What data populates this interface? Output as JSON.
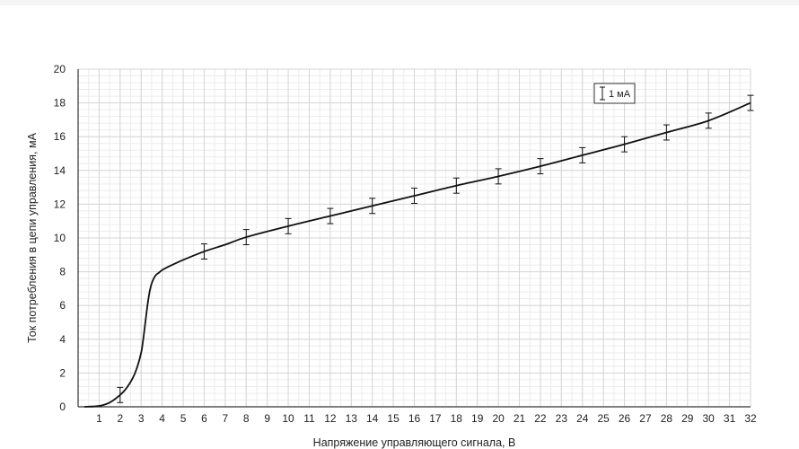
{
  "chart_data": {
    "type": "line",
    "title": "",
    "xlabel": "Напряжение управляющего сигнала, В",
    "ylabel": "Ток потребления в цепи управления, мА",
    "xlim": [
      0,
      32
    ],
    "ylim": [
      0,
      20
    ],
    "x_ticks": [
      "1",
      "2",
      "3",
      "4",
      "5",
      "6",
      "7",
      "8",
      "9",
      "10",
      "11",
      "12",
      "13",
      "14",
      "15",
      "16",
      "17",
      "18",
      "19",
      "20",
      "21",
      "22",
      "23",
      "24",
      "25",
      "26",
      "27",
      "28",
      "29",
      "30",
      "31",
      "32"
    ],
    "y_ticks": [
      "0",
      "2",
      "4",
      "6",
      "8",
      "10",
      "12",
      "14",
      "16",
      "18",
      "20"
    ],
    "grid": true,
    "series": [
      {
        "color": "#111111",
        "x": [
          0.3,
          1,
          1.5,
          2,
          2.3,
          2.6,
          2.8,
          3.0,
          3.1,
          3.2,
          3.3,
          3.4,
          3.5,
          3.6,
          3.7,
          3.8,
          3.9,
          4.0,
          4.3,
          5,
          6,
          7,
          8,
          10,
          12,
          14,
          16,
          18,
          20,
          22,
          24,
          26,
          28,
          30,
          32
        ],
        "y": [
          0,
          0.05,
          0.25,
          0.7,
          1.1,
          1.7,
          2.3,
          3.2,
          4.0,
          5.0,
          6.0,
          6.8,
          7.3,
          7.6,
          7.8,
          7.9,
          8.0,
          8.1,
          8.3,
          8.7,
          9.2,
          9.6,
          10.05,
          10.7,
          11.3,
          11.9,
          12.5,
          13.1,
          13.65,
          14.25,
          14.9,
          15.55,
          16.25,
          16.95,
          18.0
        ]
      }
    ],
    "error_bars": {
      "x": [
        2,
        6,
        8,
        10,
        12,
        14,
        16,
        18,
        20,
        22,
        24,
        26,
        28,
        30,
        32
      ],
      "y": [
        0.7,
        9.2,
        10.05,
        10.7,
        11.3,
        11.9,
        12.5,
        13.1,
        13.65,
        14.25,
        14.9,
        15.55,
        16.25,
        16.95,
        18.0
      ],
      "err": [
        0.45,
        0.45,
        0.45,
        0.45,
        0.45,
        0.45,
        0.45,
        0.45,
        0.45,
        0.45,
        0.45,
        0.45,
        0.45,
        0.45,
        0.45
      ]
    },
    "legend": {
      "label": "1 мА",
      "placement": "top-right"
    }
  }
}
